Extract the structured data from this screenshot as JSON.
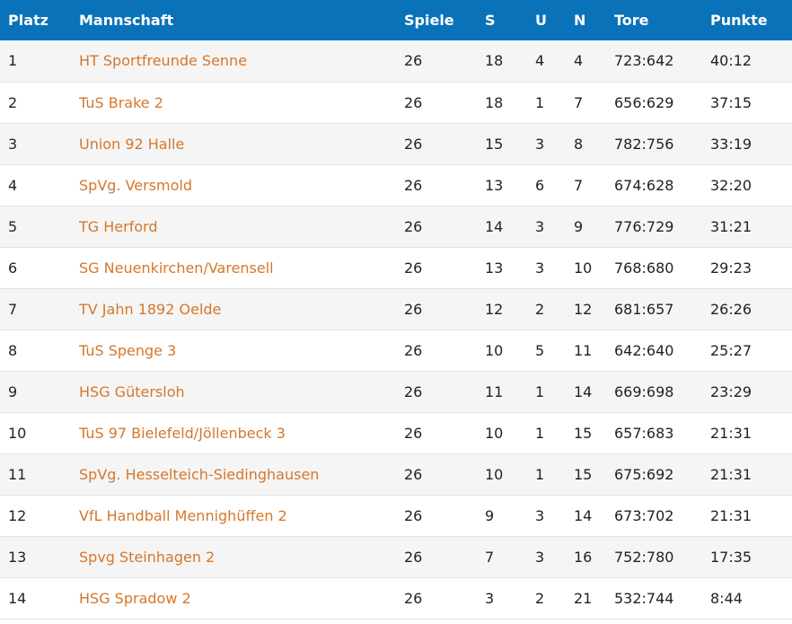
{
  "header": {
    "platz": "Platz",
    "mannschaft": "Mannschaft",
    "spiele": "Spiele",
    "s": "S",
    "u": "U",
    "n": "N",
    "tore": "Tore",
    "punkte": "Punkte"
  },
  "colors": {
    "header_bg": "#0a72b9",
    "team_link": "#d5772b",
    "row_alt": "#f5f5f5"
  },
  "rows": [
    {
      "platz": "1",
      "team": "HT Sportfreunde Senne",
      "spiele": "26",
      "s": "18",
      "u": "4",
      "n": "4",
      "tore": "723:642",
      "punkte": "40:12"
    },
    {
      "platz": "2",
      "team": "TuS Brake 2",
      "spiele": "26",
      "s": "18",
      "u": "1",
      "n": "7",
      "tore": "656:629",
      "punkte": "37:15"
    },
    {
      "platz": "3",
      "team": "Union 92 Halle",
      "spiele": "26",
      "s": "15",
      "u": "3",
      "n": "8",
      "tore": "782:756",
      "punkte": "33:19"
    },
    {
      "platz": "4",
      "team": "SpVg. Versmold",
      "spiele": "26",
      "s": "13",
      "u": "6",
      "n": "7",
      "tore": "674:628",
      "punkte": "32:20"
    },
    {
      "platz": "5",
      "team": "TG Herford",
      "spiele": "26",
      "s": "14",
      "u": "3",
      "n": "9",
      "tore": "776:729",
      "punkte": "31:21"
    },
    {
      "platz": "6",
      "team": "SG Neuenkirchen/Varensell",
      "spiele": "26",
      "s": "13",
      "u": "3",
      "n": "10",
      "tore": "768:680",
      "punkte": "29:23"
    },
    {
      "platz": "7",
      "team": "TV Jahn 1892 Oelde",
      "spiele": "26",
      "s": "12",
      "u": "2",
      "n": "12",
      "tore": "681:657",
      "punkte": "26:26"
    },
    {
      "platz": "8",
      "team": "TuS Spenge 3",
      "spiele": "26",
      "s": "10",
      "u": "5",
      "n": "11",
      "tore": "642:640",
      "punkte": "25:27"
    },
    {
      "platz": "9",
      "team": "HSG Gütersloh",
      "spiele": "26",
      "s": "11",
      "u": "1",
      "n": "14",
      "tore": "669:698",
      "punkte": "23:29"
    },
    {
      "platz": "10",
      "team": "TuS 97 Bielefeld/Jöllenbeck 3",
      "spiele": "26",
      "s": "10",
      "u": "1",
      "n": "15",
      "tore": "657:683",
      "punkte": "21:31"
    },
    {
      "platz": "11",
      "team": "SpVg. Hesselteich-Siedinghausen",
      "spiele": "26",
      "s": "10",
      "u": "1",
      "n": "15",
      "tore": "675:692",
      "punkte": "21:31"
    },
    {
      "platz": "12",
      "team": "VfL Handball Mennighüffen 2",
      "spiele": "26",
      "s": "9",
      "u": "3",
      "n": "14",
      "tore": "673:702",
      "punkte": "21:31"
    },
    {
      "platz": "13",
      "team": "Spvg Steinhagen 2",
      "spiele": "26",
      "s": "7",
      "u": "3",
      "n": "16",
      "tore": "752:780",
      "punkte": "17:35"
    },
    {
      "platz": "14",
      "team": "HSG Spradow 2",
      "spiele": "26",
      "s": "3",
      "u": "2",
      "n": "21",
      "tore": "532:744",
      "punkte": "8:44"
    }
  ]
}
